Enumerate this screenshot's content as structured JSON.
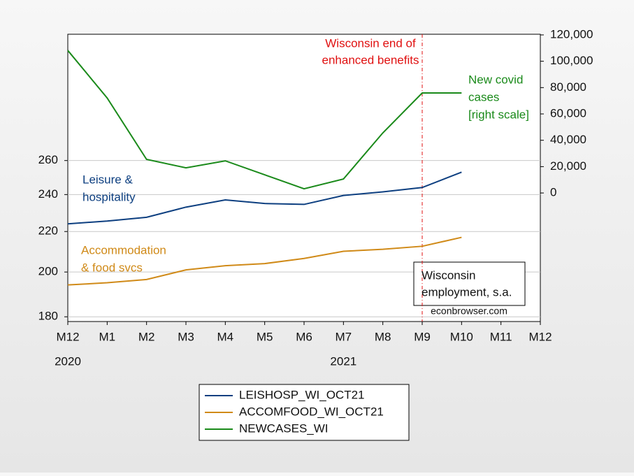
{
  "chart_data": {
    "type": "line",
    "categories": [
      "M12",
      "M1",
      "M2",
      "M3",
      "M4",
      "M5",
      "M6",
      "M7",
      "M8",
      "M9",
      "M10",
      "M11",
      "M12"
    ],
    "year_labels": [
      {
        "index": 0,
        "label": "2020"
      },
      {
        "index": 7,
        "label": "2021"
      }
    ],
    "ylim": [
      178,
      350
    ],
    "ylog": true,
    "yticks": [
      180,
      200,
      220,
      240,
      260
    ],
    "y2lim": [
      -97600,
      120500
    ],
    "y2ticks": [
      0,
      {
        "value": 20000,
        "label": "20,000"
      },
      {
        "value": 40000,
        "label": "40,000"
      },
      {
        "value": 60000,
        "label": "60,000"
      },
      {
        "value": 80000,
        "label": "80,000"
      },
      {
        "value": 100000,
        "label": "100,000"
      },
      {
        "value": 120000,
        "label": "120,000"
      }
    ],
    "grid": true,
    "series": [
      {
        "name": "LEISHOSP_WI_OCT21",
        "color": "#0d3f80",
        "values": [
          224,
          225.5,
          227.5,
          233,
          237,
          235,
          234.5,
          239.5,
          241.5,
          244,
          253,
          null,
          null
        ]
      },
      {
        "name": "ACCOMFOOD_WI_OCT21",
        "color": "#d08a18",
        "values": [
          194,
          195,
          196.5,
          201,
          203,
          204,
          206.5,
          210,
          211,
          212.5,
          217,
          null,
          null
        ]
      },
      {
        "name": "NEWCASES_WI",
        "color": "#1a8a1a",
        "axis": "y2",
        "values": [
          108200,
          72100,
          25500,
          19100,
          24400,
          13800,
          3200,
          10600,
          45600,
          75900,
          75900,
          null,
          null
        ]
      }
    ],
    "vline": {
      "index": 9,
      "color": "#e01010"
    },
    "annotations": [
      {
        "lines": [
          "Wisconsin end of",
          "enhanced benefits"
        ],
        "color": "#e01010"
      },
      {
        "lines": [
          "New covid",
          "cases",
          "[right scale]"
        ],
        "color": "#1a8a1a"
      },
      {
        "lines": [
          "Leisure &",
          "hospitality"
        ],
        "color": "#0d3f80"
      },
      {
        "lines": [
          "Accommodation",
          "& food svcs"
        ],
        "color": "#d08a18"
      },
      {
        "lines": [
          "Wisconsin",
          "employment, s.a."
        ],
        "color": "#111111"
      }
    ],
    "source": "econbrowser.com"
  }
}
